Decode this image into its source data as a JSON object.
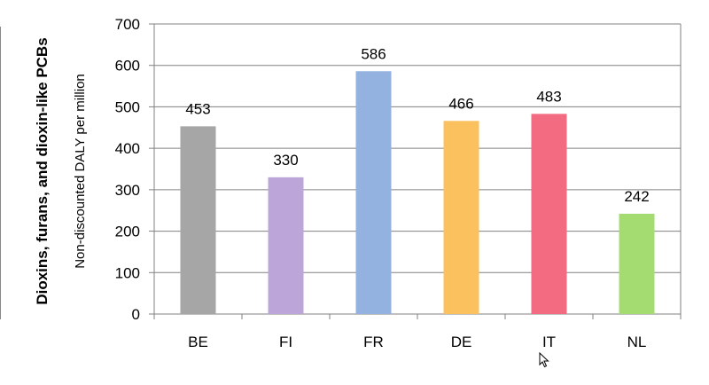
{
  "chart_data": {
    "type": "bar",
    "title": "Dioxins, furans, and dioxin-like PCBs",
    "ylabel": "Non-discounted DALY per million",
    "xlabel": "",
    "categories": [
      "BE",
      "FI",
      "FR",
      "DE",
      "IT",
      "NL"
    ],
    "values": [
      453,
      330,
      586,
      466,
      483,
      242
    ],
    "colors": [
      "#a6a6a6",
      "#bca5d9",
      "#94b2e0",
      "#fbc15e",
      "#f26b80",
      "#a4dc72"
    ],
    "ylim": [
      0,
      700
    ],
    "yticks": [
      0,
      100,
      200,
      300,
      400,
      500,
      600,
      700
    ],
    "grid": true,
    "legend": "none"
  },
  "cursor_icon": "mouse-pointer-icon"
}
